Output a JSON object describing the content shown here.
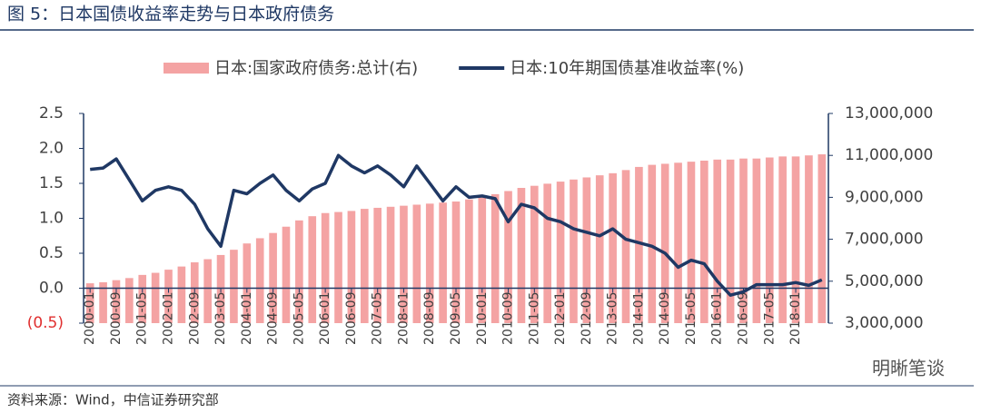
{
  "title": "图 5：日本国债收益率走势与日本政府债务",
  "source": "资料来源：Wind，中信证券研究部",
  "watermark": "明晰笔谈",
  "chart_data": {
    "type": "bar-line",
    "categories": [
      "2000-01",
      null,
      "2000-09",
      null,
      "2001-05",
      null,
      "2002-01",
      null,
      "2002-09",
      null,
      "2003-05",
      null,
      "2004-01",
      null,
      "2004-09",
      null,
      "2005-05",
      null,
      "2006-01",
      null,
      "2006-09",
      null,
      "2007-05",
      null,
      "2008-01",
      null,
      "2008-09",
      null,
      "2009-05",
      null,
      "2010-01",
      null,
      "2010-09",
      null,
      "2011-05",
      null,
      "2012-01",
      null,
      "2012-09",
      null,
      "2013-05",
      null,
      "2014-01",
      null,
      "2014-09",
      null,
      "2015-05",
      null,
      "2016-01",
      null,
      "2016-09",
      null,
      "2017-05",
      null,
      "2018-01",
      null,
      null
    ],
    "series": [
      {
        "name": "日本:国家政府债务:总计(右)",
        "type": "bar",
        "axis": "y2",
        "color": "#f4a3a3",
        "values": [
          4900000,
          4950000,
          5050000,
          5150000,
          5300000,
          5400000,
          5550000,
          5700000,
          5900000,
          6050000,
          6250000,
          6500000,
          6800000,
          7050000,
          7300000,
          7600000,
          7900000,
          8100000,
          8250000,
          8300000,
          8350000,
          8450000,
          8500000,
          8550000,
          8600000,
          8650000,
          8700000,
          8750000,
          8800000,
          8900000,
          9000000,
          9150000,
          9300000,
          9450000,
          9550000,
          9650000,
          9750000,
          9850000,
          9950000,
          10050000,
          10150000,
          10300000,
          10450000,
          10550000,
          10600000,
          10650000,
          10700000,
          10750000,
          10800000,
          10800000,
          10850000,
          10850000,
          10900000,
          10950000,
          10950000,
          11000000,
          11050000
        ]
      },
      {
        "name": "日本:10年期国债基准收益率(%)",
        "type": "line",
        "axis": "y",
        "color": "#1f3864",
        "values": [
          1.7,
          1.72,
          1.85,
          1.55,
          1.25,
          1.4,
          1.45,
          1.4,
          1.2,
          0.85,
          0.6,
          1.4,
          1.35,
          1.5,
          1.62,
          1.4,
          1.25,
          1.42,
          1.5,
          1.9,
          1.75,
          1.65,
          1.75,
          1.62,
          1.45,
          1.75,
          1.5,
          1.25,
          1.45,
          1.3,
          1.32,
          1.28,
          0.95,
          1.2,
          1.15,
          1.0,
          0.95,
          0.85,
          0.8,
          0.75,
          0.85,
          0.7,
          0.65,
          0.6,
          0.5,
          0.3,
          0.4,
          0.35,
          0.1,
          -0.1,
          -0.05,
          0.05,
          0.05,
          0.05,
          0.08,
          0.04,
          0.12
        ]
      }
    ],
    "ylim": [
      -0.5,
      2.5
    ],
    "yticks": [
      {
        "value": -0.5,
        "label": "(0.5)"
      },
      {
        "value": 0,
        "label": "0.0"
      },
      0.5,
      {
        "value": 1,
        "label": "1.0"
      },
      1.5,
      {
        "value": 2,
        "label": "2.0"
      },
      2.5
    ],
    "y2lim": [
      3000000,
      13000000
    ],
    "y2ticks": [
      {
        "value": 3000000,
        "label": "3,000,000"
      },
      {
        "value": 5000000,
        "label": "5,000,000"
      },
      {
        "value": 7000000,
        "label": "7,000,000"
      },
      {
        "value": 9000000,
        "label": "9,000,000"
      },
      {
        "value": 11000000,
        "label": "11,000,000"
      },
      {
        "value": 13000000,
        "label": "13,000,000"
      }
    ],
    "legend": "top"
  }
}
